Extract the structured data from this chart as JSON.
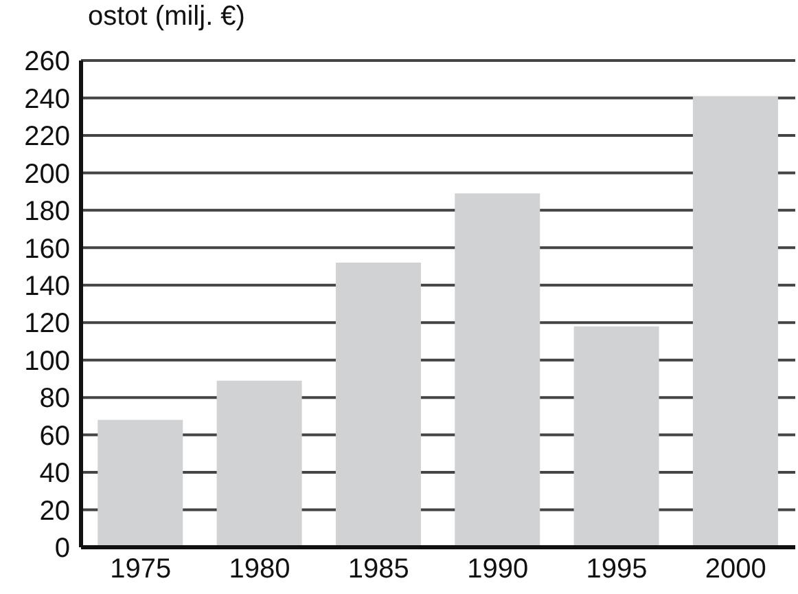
{
  "chart_data": {
    "type": "bar",
    "ylabel": "ostot (milj. €)",
    "categories": [
      "1975",
      "1980",
      "1985",
      "1990",
      "1995",
      "2000"
    ],
    "values": [
      68,
      89,
      152,
      189,
      118,
      241
    ],
    "color": "#d1d2d4",
    "ylim": [
      0,
      260
    ],
    "yticks": [
      0,
      20,
      40,
      60,
      80,
      100,
      120,
      140,
      160,
      180,
      200,
      220,
      240,
      260
    ],
    "grid": "y"
  }
}
